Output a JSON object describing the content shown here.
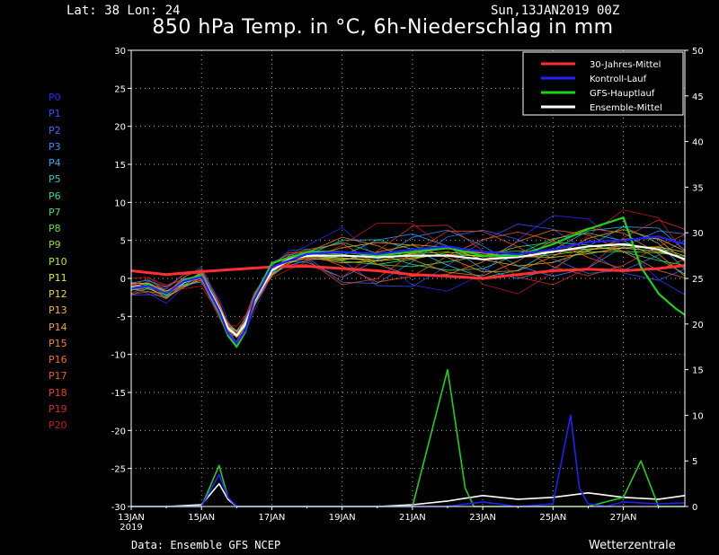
{
  "header": {
    "coords": "Lat: 38 Lon: 24",
    "date": "Sun,13JAN2019 00Z",
    "title": "850 hPa Temp. in °C, 6h-Niederschlag in mm"
  },
  "footer": {
    "source": "Data: Ensemble GFS NCEP",
    "brand": "Wetterzentrale"
  },
  "members": [
    {
      "label": "P0",
      "color": "#2a2aff"
    },
    {
      "label": "P1",
      "color": "#3050ff"
    },
    {
      "label": "P2",
      "color": "#3070ff"
    },
    {
      "label": "P3",
      "color": "#3a8cff"
    },
    {
      "label": "P4",
      "color": "#2aa8ff"
    },
    {
      "label": "P5",
      "color": "#2ac8c8"
    },
    {
      "label": "P6",
      "color": "#2ad890"
    },
    {
      "label": "P7",
      "color": "#40e060"
    },
    {
      "label": "P8",
      "color": "#60e030"
    },
    {
      "label": "P9",
      "color": "#90e020"
    },
    {
      "label": "P10",
      "color": "#b8e818"
    },
    {
      "label": "P11",
      "color": "#e8e818"
    },
    {
      "label": "P12",
      "color": "#f0d020"
    },
    {
      "label": "P13",
      "color": "#f0b820"
    },
    {
      "label": "P14",
      "color": "#f0a020"
    },
    {
      "label": "P15",
      "color": "#f08820"
    },
    {
      "label": "P16",
      "color": "#f07020"
    },
    {
      "label": "P17",
      "color": "#f05820"
    },
    {
      "label": "P18",
      "color": "#f04020"
    },
    {
      "label": "P19",
      "color": "#e02820"
    },
    {
      "label": "P20",
      "color": "#c81818"
    }
  ],
  "chart_data": {
    "type": "line",
    "title": "850 hPa Temp. in °C, 6h-Niederschlag in mm",
    "left_axis": {
      "ylim": [
        -30,
        30
      ],
      "ticks": [
        "-30",
        "-25",
        "-20",
        "-15",
        "-10",
        "-5",
        "0",
        "5",
        "10",
        "15",
        "20",
        "25",
        "30"
      ]
    },
    "right_axis": {
      "ylim": [
        0,
        50
      ],
      "ticks": [
        "0",
        "5",
        "10",
        "15",
        "20",
        "25",
        "30",
        "35",
        "40",
        "45",
        "50"
      ]
    },
    "x_axis": {
      "start": "13JAN2019 00Z",
      "end": "28JAN2019 18Z",
      "step_hours": 6,
      "ticks": [
        "13JAN",
        "15JAN",
        "17JAN",
        "19JAN",
        "21JAN",
        "23JAN",
        "25JAN",
        "27JAN"
      ],
      "first_tick_year": "2019"
    },
    "grid": true,
    "legend": {
      "placement": "top-right",
      "entries": [
        {
          "label": "30-Jahres-Mittel",
          "color": "#ff3030"
        },
        {
          "label": "Kontroll-Lauf",
          "color": "#2020ff"
        },
        {
          "label": "GFS-Hauptlauf",
          "color": "#20d020"
        },
        {
          "label": "Ensemble-Mittel",
          "color": "#ffffff"
        }
      ]
    },
    "series": [
      {
        "name": "30-Jahres-Mittel",
        "axis": "left",
        "color": "#ff3030",
        "x_days": [
          0,
          1,
          2,
          3,
          4,
          5,
          6,
          7,
          8,
          9,
          10,
          11,
          12,
          13,
          14,
          15,
          15.75
        ],
        "values": [
          1.0,
          0.5,
          0.9,
          1.2,
          1.5,
          1.6,
          1.3,
          1.0,
          0.5,
          0.3,
          0.0,
          0.5,
          1.0,
          1.2,
          1.0,
          1.3,
          1.7
        ]
      },
      {
        "name": "Ensemble-Mittel",
        "axis": "left",
        "color": "#ffffff",
        "x_days": [
          0,
          0.5,
          1,
          1.5,
          2,
          2.5,
          2.75,
          3,
          3.25,
          3.5,
          4,
          4.5,
          5,
          6,
          7,
          8,
          9,
          10,
          11,
          12,
          13,
          14,
          15,
          15.75
        ],
        "values": [
          -1.2,
          -1.0,
          -2.0,
          -0.5,
          0.3,
          -4.0,
          -6.5,
          -7.5,
          -6.0,
          -3.0,
          1.0,
          2.5,
          3.0,
          3.0,
          2.8,
          3.0,
          3.0,
          2.5,
          2.8,
          3.5,
          4.2,
          4.5,
          3.8,
          2.5
        ]
      },
      {
        "name": "GFS-Hauptlauf",
        "axis": "left",
        "color": "#20d020",
        "x_days": [
          0,
          0.5,
          1,
          1.5,
          2,
          2.5,
          2.75,
          3,
          3.25,
          3.5,
          4,
          5,
          6,
          7,
          8,
          9,
          10,
          11,
          12,
          13,
          14,
          14.5,
          15,
          15.5,
          15.75
        ],
        "values": [
          -1.5,
          -0.8,
          -2.2,
          -0.2,
          0.4,
          -4.5,
          -7.5,
          -9.0,
          -7.0,
          -2.5,
          2.0,
          3.5,
          3.5,
          3.0,
          3.5,
          4.0,
          3.0,
          3.0,
          4.5,
          6.5,
          8.0,
          1.5,
          -2.0,
          -4.0,
          -4.8
        ]
      },
      {
        "name": "Kontroll-Lauf",
        "axis": "left",
        "color": "#2020ff",
        "x_days": [
          0,
          0.5,
          1,
          1.5,
          2,
          2.5,
          2.75,
          3,
          3.25,
          3.5,
          4,
          5,
          6,
          7,
          8,
          9,
          10,
          11,
          12,
          13,
          14,
          15,
          15.75
        ],
        "values": [
          -1.3,
          -1.0,
          -2.0,
          -0.4,
          0.2,
          -4.2,
          -7.2,
          -8.5,
          -6.8,
          -2.8,
          1.5,
          3.2,
          3.5,
          3.2,
          3.8,
          4.2,
          3.5,
          3.2,
          3.8,
          4.8,
          5.0,
          5.5,
          4.5
        ]
      },
      {
        "name": "Ensemble-Mittel",
        "axis": "right",
        "color": "#ffffff",
        "x_days": [
          0,
          1,
          2,
          2.5,
          2.75,
          3,
          3.5,
          4,
          5,
          6,
          7,
          8,
          9,
          10,
          11,
          12,
          13,
          14,
          15,
          15.75
        ],
        "values": [
          0,
          0,
          0.2,
          2.5,
          0.8,
          0,
          0,
          0,
          0,
          0,
          0,
          0.2,
          0.6,
          1.2,
          0.8,
          1.0,
          1.5,
          1.0,
          0.8,
          1.2
        ]
      },
      {
        "name": "GFS-Hauptlauf",
        "axis": "right",
        "color": "#20d020",
        "x_days": [
          0,
          2,
          2.5,
          2.75,
          3,
          8,
          8.5,
          9,
          9.5,
          9.75,
          10,
          11,
          12,
          13,
          13.5,
          14,
          14.5,
          15,
          15.75
        ],
        "values": [
          0,
          0,
          4.5,
          1,
          0,
          0,
          7.5,
          15,
          2,
          0,
          0,
          0,
          0,
          0,
          0.5,
          1,
          5,
          0,
          0
        ]
      },
      {
        "name": "Kontroll-Lauf",
        "axis": "right",
        "color": "#2020ff",
        "x_days": [
          0,
          2,
          2.5,
          2.75,
          3,
          9,
          10,
          11,
          12,
          12.5,
          12.75,
          13,
          13.5,
          14,
          15,
          15.75
        ],
        "values": [
          0,
          0,
          3.5,
          1,
          0,
          0,
          0.5,
          0,
          0.3,
          10,
          2,
          0.3,
          0,
          0.5,
          0.3,
          0.4
        ]
      }
    ]
  }
}
